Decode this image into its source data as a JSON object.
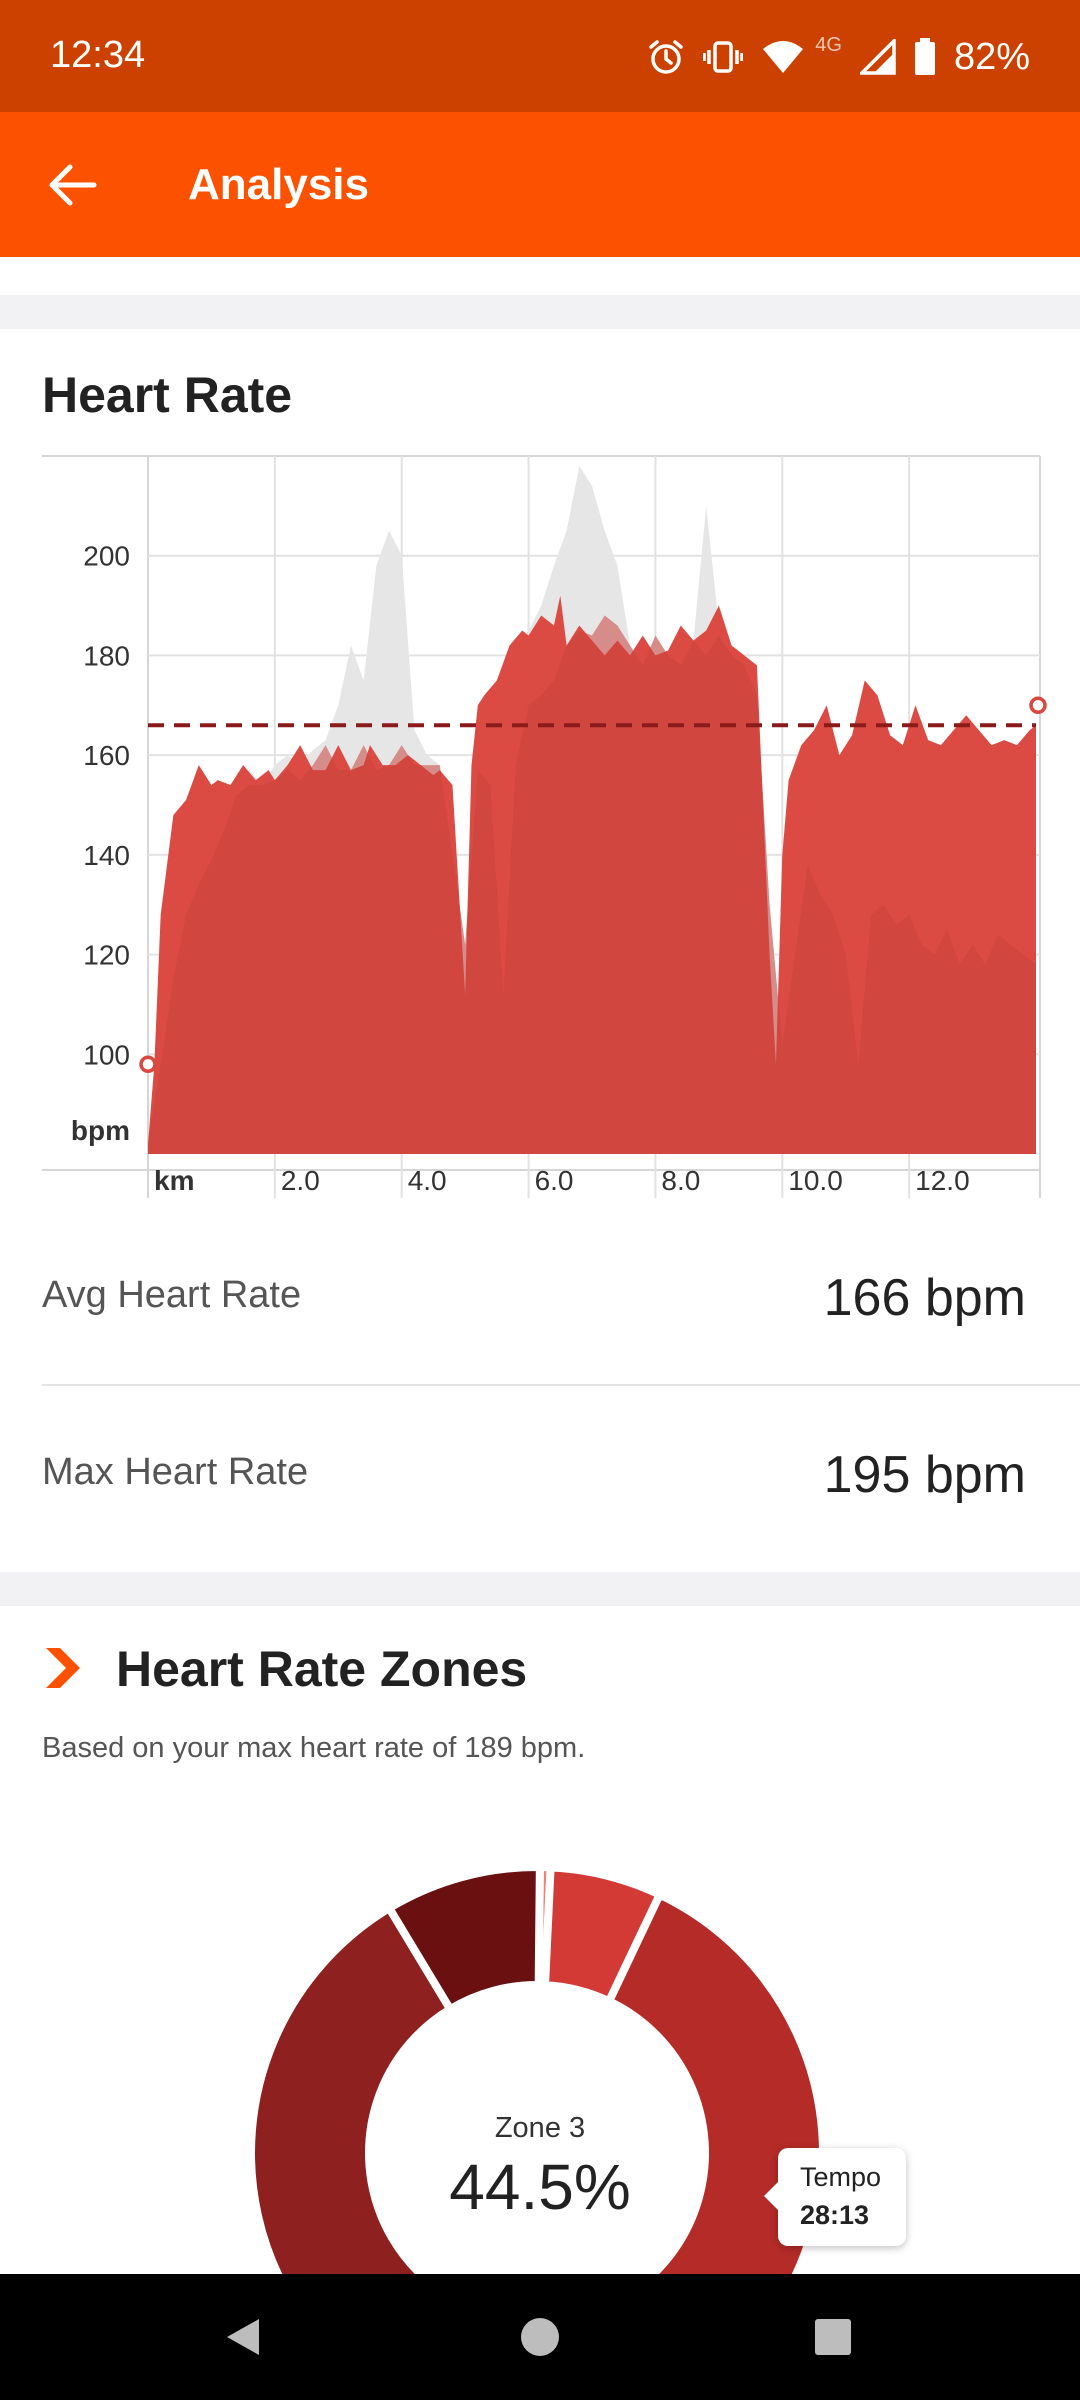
{
  "status_bar": {
    "time": "12:34",
    "network": "4G",
    "battery": "82%",
    "icons": [
      "alarm-icon",
      "vibrate-icon",
      "wifi-icon",
      "signal-icon",
      "battery-icon"
    ]
  },
  "app_bar": {
    "title": "Analysis",
    "back_icon": "arrow-left-icon"
  },
  "heart_rate": {
    "title": "Heart Rate",
    "avg_label": "Avg Heart Rate",
    "avg_value": "166 bpm",
    "max_label": "Max Heart Rate",
    "max_value": "195 bpm"
  },
  "chart_data": {
    "type": "area",
    "ylabel": "bpm",
    "xlabel": "km",
    "ylim": [
      80,
      220
    ],
    "xlim": [
      0,
      14
    ],
    "y_ticks": [
      100,
      120,
      140,
      160,
      180,
      200
    ],
    "x_ticks": [
      2.0,
      4.0,
      6.0,
      8.0,
      10.0,
      12.0
    ],
    "x_tick_labels": [
      "2.0",
      "4.0",
      "6.0",
      "8.0",
      "10.0",
      "12.0"
    ],
    "reference_line": 166,
    "grid": true,
    "colors": {
      "heart_rate": "#d9473f",
      "background": "#e6e6e6",
      "inner": "#c8443d",
      "average": "#8b1a1a"
    },
    "series": [
      {
        "x": [
          0,
          0.1,
          0.2,
          0.4,
          0.6,
          0.8,
          1.0,
          1.1,
          1.3,
          1.5,
          1.7,
          1.9,
          2.0,
          2.2,
          2.4,
          2.6,
          2.8,
          3.0,
          3.2,
          3.4,
          3.5,
          3.7,
          3.9,
          4.1,
          4.3,
          4.5,
          4.6,
          4.8,
          5.0,
          5.1,
          5.2,
          5.3,
          5.5,
          5.7,
          5.9,
          6.0,
          6.2,
          6.4,
          6.5,
          6.6,
          6.8,
          7.0,
          7.2,
          7.4,
          7.6,
          7.8,
          8.0,
          8.2,
          8.4,
          8.6,
          8.8,
          9.0,
          9.2,
          9.4,
          9.6,
          9.8,
          9.9,
          10.0,
          10.1,
          10.3,
          10.5,
          10.7,
          10.9,
          11.1,
          11.3,
          11.5,
          11.7,
          11.9,
          12.1,
          12.3,
          12.5,
          12.7,
          12.9,
          13.1,
          13.3,
          13.5,
          13.7,
          13.9,
          14.0
        ],
        "values": [
          82,
          98,
          128,
          148,
          151,
          158,
          154,
          155,
          154,
          158,
          155,
          157,
          155,
          158,
          162,
          157,
          157,
          162,
          157,
          158,
          162,
          158,
          158,
          160,
          158,
          156,
          157,
          154,
          112,
          158,
          170,
          172,
          175,
          182,
          185,
          184,
          188,
          186,
          192,
          182,
          186,
          183,
          180,
          183,
          180,
          184,
          180,
          181,
          186,
          183,
          185,
          190,
          182,
          180,
          178,
          120,
          98,
          140,
          155,
          162,
          165,
          170,
          160,
          164,
          175,
          172,
          164,
          162,
          170,
          163,
          162,
          165,
          168,
          165,
          162,
          163,
          162,
          165,
          166
        ]
      }
    ],
    "background_series": [
      {
        "x": [
          0,
          0.2,
          0.4,
          0.6,
          0.8,
          1.0,
          1.2,
          1.4,
          1.6,
          1.8,
          2.0,
          2.2,
          2.4,
          2.6,
          2.8,
          3.0,
          3.2,
          3.4,
          3.6,
          3.8,
          4.0,
          4.2,
          4.4,
          4.6,
          4.8,
          5.0,
          5.2,
          5.4,
          5.6,
          5.8,
          6.0,
          6.2,
          6.4,
          6.6,
          6.8,
          7.0,
          7.2,
          7.4,
          7.6,
          7.8,
          8.0,
          8.2,
          8.4,
          8.6,
          8.8,
          9.0,
          9.2,
          9.4,
          9.6,
          9.8,
          10.0,
          10.2,
          10.4,
          10.6,
          10.8,
          11.0,
          11.2,
          11.4,
          11.6,
          11.8,
          12.0,
          12.2,
          12.4,
          12.6,
          12.8,
          13.0,
          13.2,
          13.4,
          13.6,
          13.8,
          14.0
        ],
        "values": [
          82,
          100,
          115,
          128,
          134,
          139,
          145,
          152,
          157,
          154,
          158,
          160,
          158,
          161,
          163,
          170,
          182,
          175,
          198,
          205,
          200,
          165,
          160,
          158,
          140,
          122,
          160,
          170,
          176,
          182,
          185,
          190,
          198,
          205,
          218,
          214,
          205,
          198,
          182,
          178,
          184,
          180,
          178,
          183,
          210,
          186,
          182,
          178,
          172,
          130,
          102,
          120,
          138,
          132,
          128,
          125,
          122,
          128,
          130,
          126,
          128,
          122,
          120,
          125,
          118,
          122,
          118,
          124,
          122,
          120,
          118
        ]
      }
    ]
  },
  "zones": {
    "title": "Heart Rate Zones",
    "subtitle": "Based on your max heart rate of 189 bpm.",
    "icon": "chevron-zone-icon",
    "center_label": "Zone 3",
    "center_value": "44.5%",
    "tooltip_name": "Tempo",
    "tooltip_time": "28:13",
    "colors": [
      "#f08070",
      "#d33a35",
      "#b52b27",
      "#8e2020",
      "#6a1010"
    ],
    "segments": [
      0.006,
      0.063,
      0.445,
      0.398,
      0.088
    ]
  },
  "nav_bar": {
    "icons": [
      "back-triangle-icon",
      "home-circle-icon",
      "recents-square-icon"
    ]
  }
}
